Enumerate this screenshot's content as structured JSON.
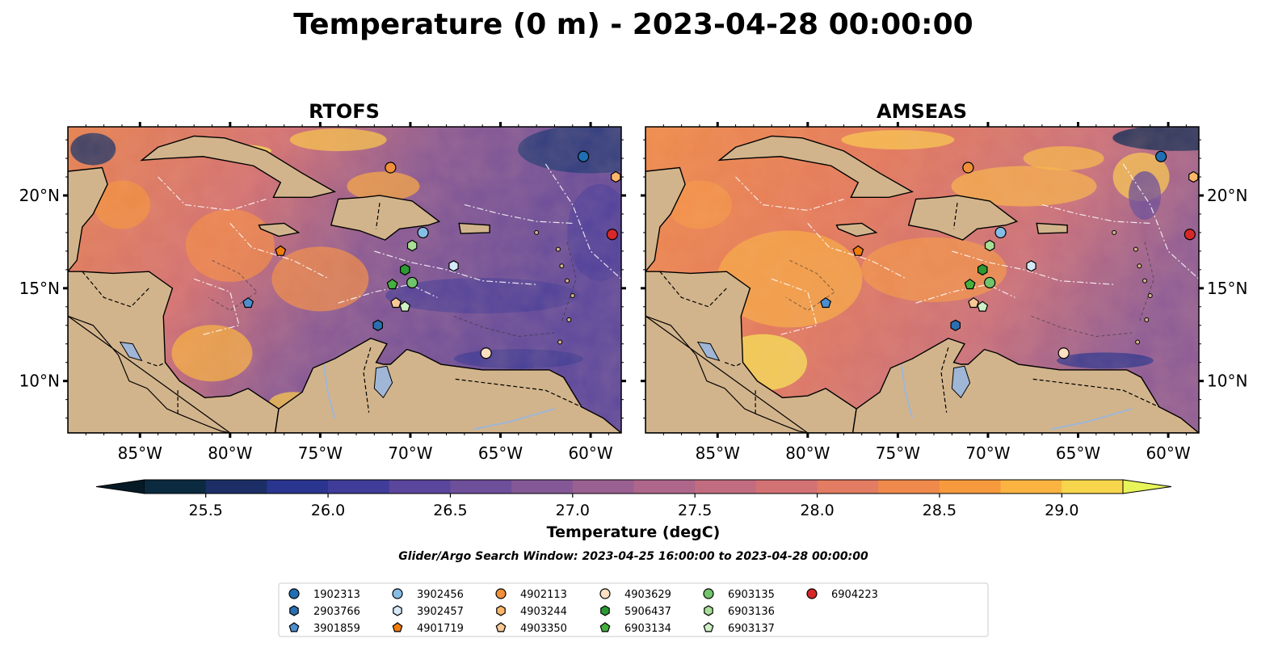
{
  "figure": {
    "title": "Temperature (0 m) - 2023-04-28 00:00:00",
    "subtitle": "Glider/Argo Search Window: 2023-04-25 16:00:00 to 2023-04-28 00:00:00"
  },
  "panels": [
    {
      "id": "rtofs",
      "title": "RTOFS",
      "lat_labels_side": "left"
    },
    {
      "id": "amseas",
      "title": "AMSEAS",
      "lat_labels_side": "right"
    }
  ],
  "map_extent": {
    "lon_min": -89,
    "lon_max": -58.3,
    "lat_min": 7.2,
    "lat_max": 23.7
  },
  "lon_ticks": [
    {
      "value": -85,
      "label": "85°W"
    },
    {
      "value": -80,
      "label": "80°W"
    },
    {
      "value": -75,
      "label": "75°W"
    },
    {
      "value": -70,
      "label": "70°W"
    },
    {
      "value": -65,
      "label": "65°W"
    },
    {
      "value": -60,
      "label": "60°W"
    }
  ],
  "lat_ticks": [
    {
      "value": 20,
      "label": "20°N"
    },
    {
      "value": 15,
      "label": "15°N"
    },
    {
      "value": 10,
      "label": "10°N"
    }
  ],
  "colorbar": {
    "label": "Temperature (degC)",
    "min": 25.25,
    "max": 29.25,
    "step": 0.25,
    "extend": "both",
    "ticks": [
      {
        "value": 25.5,
        "label": "25.5"
      },
      {
        "value": 26.0,
        "label": "26.0"
      },
      {
        "value": 26.5,
        "label": "26.5"
      },
      {
        "value": 27.0,
        "label": "27.0"
      },
      {
        "value": 27.5,
        "label": "27.5"
      },
      {
        "value": 28.0,
        "label": "28.0"
      },
      {
        "value": 28.5,
        "label": "28.5"
      },
      {
        "value": 29.0,
        "label": "29.0"
      }
    ],
    "colors": [
      "#0b2a3f",
      "#1b2f66",
      "#2a358f",
      "#3f3d99",
      "#5a469c",
      "#6e4f9a",
      "#845896",
      "#9a6091",
      "#ae678a",
      "#c26c80",
      "#d37274",
      "#e27c62",
      "#ef8a4c",
      "#f79a3e",
      "#fbb442",
      "#f7d64d"
    ],
    "under_color": "#061a26",
    "over_color": "#e8f55a"
  },
  "colors": {
    "land": "#d2b48c",
    "lake": "#9fb6d6",
    "pacific_amseas": "#96b4de",
    "pacific_rtofs": "#e8f55a"
  },
  "legend": {
    "entries": [
      {
        "label": "1902313",
        "shape": "circle",
        "color": "#1f6fb4",
        "lon": -60.4,
        "lat": 22.1
      },
      {
        "label": "2903766",
        "shape": "hexagon",
        "color": "#2b6fb0",
        "lon": -71.8,
        "lat": 13.0
      },
      {
        "label": "3901859",
        "shape": "pentagon",
        "color": "#4b8fd0",
        "lon": -79.0,
        "lat": 14.2
      },
      {
        "label": "3902456",
        "shape": "circle",
        "color": "#86bde6",
        "lon": -69.3,
        "lat": 18.0
      },
      {
        "label": "3902457",
        "shape": "hexagon",
        "color": "#d4e8f7",
        "lon": -67.6,
        "lat": 16.2
      },
      {
        "label": "4901719",
        "shape": "pentagon",
        "color": "#f07c0c",
        "lon": -77.2,
        "lat": 17.0
      },
      {
        "label": "4902113",
        "shape": "circle",
        "color": "#f0903a",
        "lon": -71.1,
        "lat": 21.5
      },
      {
        "label": "4903244",
        "shape": "hexagon",
        "color": "#fbb66a",
        "lon": -58.6,
        "lat": 21.0
      },
      {
        "label": "4903350",
        "shape": "pentagon",
        "color": "#f8c896",
        "lon": -70.8,
        "lat": 14.2
      },
      {
        "label": "4903629",
        "shape": "circle",
        "color": "#fde0c2",
        "lon": -65.8,
        "lat": 11.5
      },
      {
        "label": "5906437",
        "shape": "hexagon",
        "color": "#2c9a32",
        "lon": -70.3,
        "lat": 16.0
      },
      {
        "label": "6903134",
        "shape": "pentagon",
        "color": "#44b040",
        "lon": -71.0,
        "lat": 15.2
      },
      {
        "label": "6903135",
        "shape": "circle",
        "color": "#72c46a",
        "lon": -69.9,
        "lat": 15.3
      },
      {
        "label": "6903136",
        "shape": "hexagon",
        "color": "#a8de96",
        "lon": -69.9,
        "lat": 17.3
      },
      {
        "label": "6903137",
        "shape": "pentagon",
        "color": "#cdf0c4",
        "lon": -70.3,
        "lat": 14.0
      },
      {
        "label": "6904223",
        "shape": "circle",
        "color": "#d62828",
        "lon": -58.8,
        "lat": 17.9
      }
    ]
  }
}
